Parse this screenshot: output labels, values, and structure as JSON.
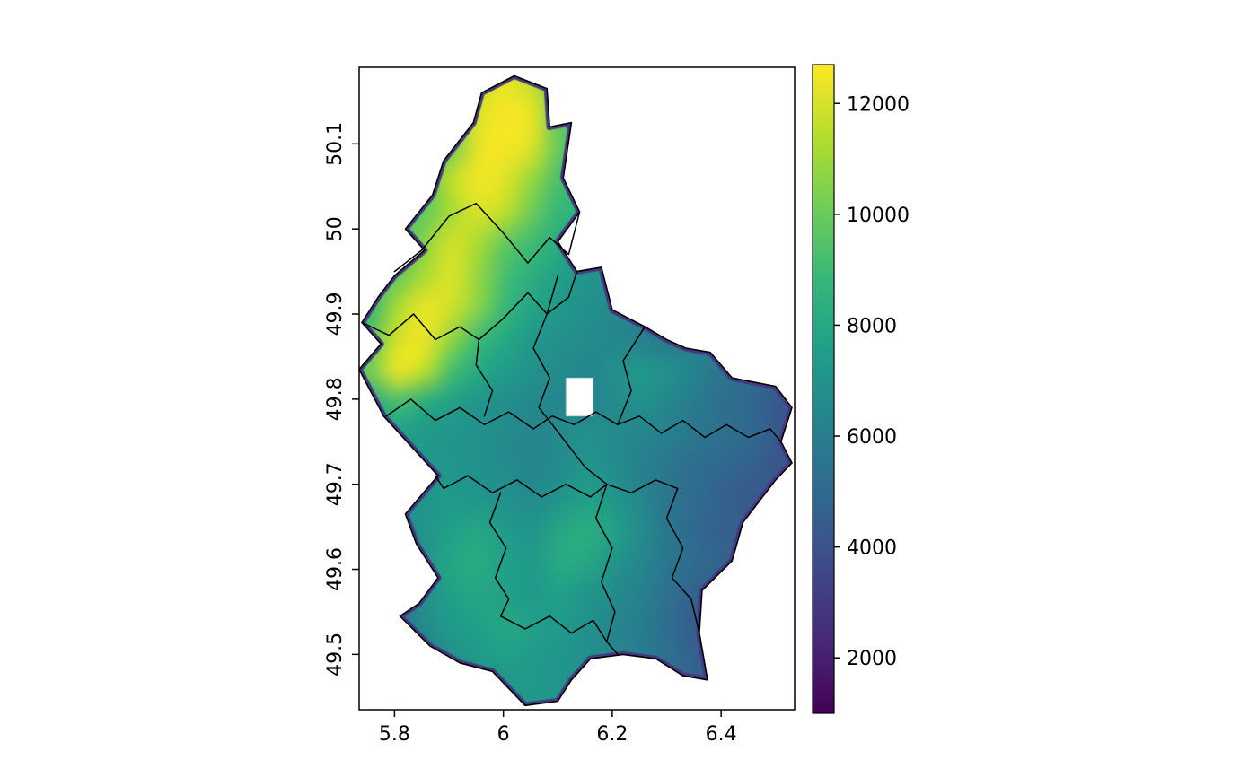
{
  "figure": {
    "background": "#ffffff",
    "frame_color": "#000000",
    "text_color": "#000000"
  },
  "chart_data": {
    "type": "heatmap",
    "subtype": "geographic-raster-map",
    "region": "Luxembourg with canton boundaries",
    "grid": "off",
    "legend_position": "right-colorbar",
    "x_axis": {
      "ticks": [
        5.8,
        6,
        6.2,
        6.4
      ],
      "tick_labels": [
        "5.8",
        "6",
        "6.2",
        "6.4"
      ],
      "range": [
        5.735,
        6.535
      ]
    },
    "y_axis": {
      "ticks": [
        49.5,
        49.6,
        49.7,
        49.8,
        49.9,
        50,
        50.1
      ],
      "tick_labels": [
        "49.5",
        "49.6",
        "49.7",
        "49.8",
        "49.9",
        "50",
        "50.1"
      ],
      "range": [
        49.435,
        50.19
      ],
      "label_rotation": -90
    },
    "colorbar": {
      "ticks": [
        2000,
        4000,
        6000,
        8000,
        10000,
        12000
      ],
      "tick_labels": [
        "2000",
        "4000",
        "6000",
        "8000",
        "10000",
        "12000"
      ],
      "range": [
        1000,
        12700
      ],
      "colormap": "viridis",
      "stops": [
        "#440154",
        "#482878",
        "#3E4A89",
        "#31688E",
        "#26828E",
        "#1F9E89",
        "#35B779",
        "#6DCD59",
        "#B4DE2C",
        "#FDE725"
      ],
      "rim_color": "#453781"
    },
    "raster": {
      "lon_range": [
        5.73,
        6.53
      ],
      "lat_range": [
        49.44,
        50.19
      ],
      "ncols": 16,
      "nrows": 20,
      "values": [
        [
          null,
          null,
          null,
          null,
          11800,
          12400,
          11500,
          null,
          null,
          null,
          null,
          null,
          null,
          null,
          null,
          null
        ],
        [
          null,
          null,
          null,
          10500,
          12100,
          12600,
          12300,
          9500,
          null,
          null,
          null,
          null,
          null,
          null,
          null,
          null
        ],
        [
          null,
          null,
          null,
          10200,
          12300,
          12600,
          12000,
          9800,
          null,
          null,
          null,
          null,
          null,
          null,
          null,
          null
        ],
        [
          null,
          null,
          9600,
          11600,
          12500,
          12100,
          10800,
          9200,
          null,
          null,
          null,
          null,
          null,
          null,
          null,
          null
        ],
        [
          null,
          null,
          9900,
          11200,
          12100,
          11600,
          10000,
          8700,
          null,
          null,
          null,
          null,
          null,
          null,
          null,
          null
        ],
        [
          null,
          9200,
          10600,
          11900,
          11200,
          9800,
          9000,
          8200,
          null,
          null,
          null,
          null,
          null,
          null,
          null,
          null
        ],
        [
          null,
          9800,
          11200,
          12100,
          10800,
          9200,
          8300,
          7600,
          7100,
          null,
          null,
          null,
          null,
          null,
          null,
          null
        ],
        [
          8800,
          11200,
          12300,
          11900,
          10600,
          8800,
          7800,
          7200,
          6900,
          6600,
          null,
          null,
          null,
          null,
          null,
          null
        ],
        [
          9600,
          11900,
          12400,
          10800,
          9000,
          8000,
          7200,
          6900,
          6600,
          6400,
          6100,
          5600,
          null,
          null,
          null,
          null
        ],
        [
          10200,
          12400,
          11600,
          9200,
          8000,
          7400,
          6900,
          6600,
          6400,
          6800,
          7200,
          6800,
          6200,
          5600,
          5000,
          null
        ],
        [
          7800,
          9200,
          8200,
          7600,
          7100,
          6800,
          6500,
          6400,
          6300,
          6600,
          6900,
          6400,
          5800,
          5200,
          4900,
          4200
        ],
        [
          7200,
          7600,
          7300,
          7100,
          6900,
          6600,
          6400,
          6600,
          6900,
          6600,
          6400,
          6100,
          5600,
          5300,
          5000,
          4300
        ],
        [
          null,
          7100,
          7300,
          7100,
          6900,
          6600,
          6400,
          6600,
          7100,
          6600,
          6100,
          5600,
          5100,
          4900,
          4600,
          4100
        ],
        [
          null,
          6900,
          7100,
          7300,
          7100,
          6900,
          6600,
          7100,
          7600,
          7100,
          6400,
          5600,
          5100,
          4600,
          4300,
          null
        ],
        [
          null,
          6600,
          7100,
          7600,
          7900,
          7300,
          7100,
          7900,
          8300,
          7600,
          6600,
          5600,
          4900,
          4600,
          null,
          null
        ],
        [
          null,
          6400,
          7100,
          7900,
          8100,
          7600,
          7300,
          8100,
          7900,
          7100,
          6400,
          5600,
          5100,
          4600,
          null,
          null
        ],
        [
          null,
          6100,
          6900,
          7600,
          7900,
          7600,
          7300,
          7600,
          7100,
          6600,
          6100,
          5300,
          4600,
          null,
          null,
          null
        ],
        [
          null,
          5600,
          6600,
          7300,
          7600,
          7900,
          7600,
          7300,
          6900,
          6400,
          5900,
          5100,
          4400,
          null,
          null,
          null
        ],
        [
          null,
          null,
          6100,
          6900,
          7300,
          7600,
          7300,
          7100,
          6900,
          6400,
          5900,
          5300,
          4600,
          null,
          null,
          null
        ],
        [
          null,
          null,
          null,
          null,
          6600,
          7100,
          7300,
          7100,
          6600,
          null,
          null,
          null,
          null,
          null,
          null,
          null
        ]
      ]
    },
    "missing_region": {
      "lon": [
        6.115,
        6.165
      ],
      "lat": [
        49.78,
        49.825
      ]
    },
    "outline": [
      [
        6.02,
        50.18
      ],
      [
        6.08,
        50.165
      ],
      [
        6.085,
        50.12
      ],
      [
        6.125,
        50.125
      ],
      [
        6.11,
        50.06
      ],
      [
        6.14,
        50.02
      ],
      [
        6.1,
        49.985
      ],
      [
        6.135,
        49.95
      ],
      [
        6.18,
        49.955
      ],
      [
        6.2,
        49.905
      ],
      [
        6.26,
        49.885
      ],
      [
        6.3,
        49.87
      ],
      [
        6.335,
        49.86
      ],
      [
        6.38,
        49.855
      ],
      [
        6.42,
        49.825
      ],
      [
        6.5,
        49.815
      ],
      [
        6.53,
        49.79
      ],
      [
        6.51,
        49.75
      ],
      [
        6.53,
        49.725
      ],
      [
        6.5,
        49.705
      ],
      [
        6.44,
        49.655
      ],
      [
        6.42,
        49.61
      ],
      [
        6.365,
        49.575
      ],
      [
        6.36,
        49.525
      ],
      [
        6.375,
        49.47
      ],
      [
        6.33,
        49.475
      ],
      [
        6.28,
        49.495
      ],
      [
        6.22,
        49.5
      ],
      [
        6.16,
        49.495
      ],
      [
        6.125,
        49.47
      ],
      [
        6.1,
        49.445
      ],
      [
        6.04,
        49.44
      ],
      [
        5.98,
        49.48
      ],
      [
        5.92,
        49.49
      ],
      [
        5.865,
        49.51
      ],
      [
        5.81,
        49.545
      ],
      [
        5.845,
        49.56
      ],
      [
        5.88,
        49.59
      ],
      [
        5.84,
        49.63
      ],
      [
        5.82,
        49.665
      ],
      [
        5.88,
        49.71
      ],
      [
        5.83,
        49.745
      ],
      [
        5.78,
        49.78
      ],
      [
        5.735,
        49.835
      ],
      [
        5.775,
        49.865
      ],
      [
        5.74,
        49.89
      ],
      [
        5.77,
        49.92
      ],
      [
        5.8,
        49.945
      ],
      [
        5.855,
        49.975
      ],
      [
        5.82,
        50.0
      ],
      [
        5.87,
        50.04
      ],
      [
        5.89,
        50.08
      ],
      [
        5.945,
        50.125
      ],
      [
        5.96,
        50.16
      ]
    ],
    "canton_borders": [
      [
        [
          5.8,
          49.95
        ],
        [
          5.85,
          49.975
        ],
        [
          5.9,
          50.015
        ],
        [
          5.95,
          50.03
        ],
        [
          6.0,
          49.995
        ],
        [
          6.045,
          49.96
        ],
        [
          6.085,
          49.99
        ],
        [
          6.12,
          49.97
        ],
        [
          6.14,
          50.02
        ]
      ],
      [
        [
          5.74,
          49.89
        ],
        [
          5.79,
          49.875
        ],
        [
          5.835,
          49.9
        ],
        [
          5.875,
          49.87
        ],
        [
          5.92,
          49.885
        ],
        [
          5.955,
          49.87
        ],
        [
          6.0,
          49.895
        ],
        [
          6.045,
          49.925
        ],
        [
          6.08,
          49.9
        ],
        [
          6.1,
          49.945
        ]
      ],
      [
        [
          6.08,
          49.9
        ],
        [
          6.12,
          49.92
        ],
        [
          6.135,
          49.95
        ]
      ],
      [
        [
          5.785,
          49.78
        ],
        [
          5.83,
          49.8
        ],
        [
          5.875,
          49.775
        ],
        [
          5.92,
          49.79
        ],
        [
          5.965,
          49.77
        ],
        [
          6.01,
          49.785
        ],
        [
          6.055,
          49.765
        ],
        [
          6.09,
          49.78
        ],
        [
          6.13,
          49.77
        ],
        [
          6.17,
          49.785
        ],
        [
          6.21,
          49.77
        ],
        [
          6.25,
          49.78
        ]
      ],
      [
        [
          5.955,
          49.87
        ],
        [
          5.95,
          49.84
        ],
        [
          5.98,
          49.81
        ],
        [
          5.965,
          49.78
        ]
      ],
      [
        [
          6.08,
          49.9
        ],
        [
          6.055,
          49.86
        ],
        [
          6.085,
          49.825
        ],
        [
          6.065,
          49.79
        ],
        [
          6.09,
          49.77
        ],
        [
          6.12,
          49.745
        ],
        [
          6.15,
          49.72
        ],
        [
          6.19,
          49.7
        ]
      ],
      [
        [
          5.875,
          49.71
        ],
        [
          5.89,
          49.695
        ],
        [
          5.935,
          49.71
        ],
        [
          5.98,
          49.69
        ],
        [
          6.025,
          49.705
        ],
        [
          6.07,
          49.685
        ],
        [
          6.115,
          49.7
        ],
        [
          6.16,
          49.685
        ],
        [
          6.19,
          49.7
        ],
        [
          6.235,
          49.69
        ],
        [
          6.28,
          49.705
        ],
        [
          6.32,
          49.695
        ]
      ],
      [
        [
          5.995,
          49.69
        ],
        [
          5.975,
          49.655
        ],
        [
          6.005,
          49.625
        ],
        [
          5.985,
          49.59
        ],
        [
          6.01,
          49.565
        ],
        [
          5.995,
          49.545
        ]
      ],
      [
        [
          6.19,
          49.7
        ],
        [
          6.17,
          49.66
        ],
        [
          6.2,
          49.625
        ],
        [
          6.18,
          49.585
        ],
        [
          6.205,
          49.55
        ],
        [
          6.19,
          49.515
        ],
        [
          6.21,
          49.5
        ]
      ],
      [
        [
          5.995,
          49.545
        ],
        [
          6.04,
          49.53
        ],
        [
          6.085,
          49.545
        ],
        [
          6.125,
          49.525
        ],
        [
          6.165,
          49.54
        ],
        [
          6.19,
          49.515
        ]
      ],
      [
        [
          6.32,
          49.695
        ],
        [
          6.3,
          49.66
        ],
        [
          6.33,
          49.625
        ],
        [
          6.31,
          49.59
        ],
        [
          6.345,
          49.565
        ],
        [
          6.36,
          49.525
        ]
      ],
      [
        [
          6.25,
          49.78
        ],
        [
          6.29,
          49.76
        ],
        [
          6.33,
          49.775
        ],
        [
          6.37,
          49.755
        ],
        [
          6.41,
          49.77
        ],
        [
          6.45,
          49.755
        ],
        [
          6.49,
          49.765
        ],
        [
          6.51,
          49.75
        ]
      ],
      [
        [
          6.21,
          49.77
        ],
        [
          6.235,
          49.81
        ],
        [
          6.22,
          49.845
        ],
        [
          6.25,
          49.875
        ],
        [
          6.26,
          49.885
        ]
      ]
    ]
  }
}
